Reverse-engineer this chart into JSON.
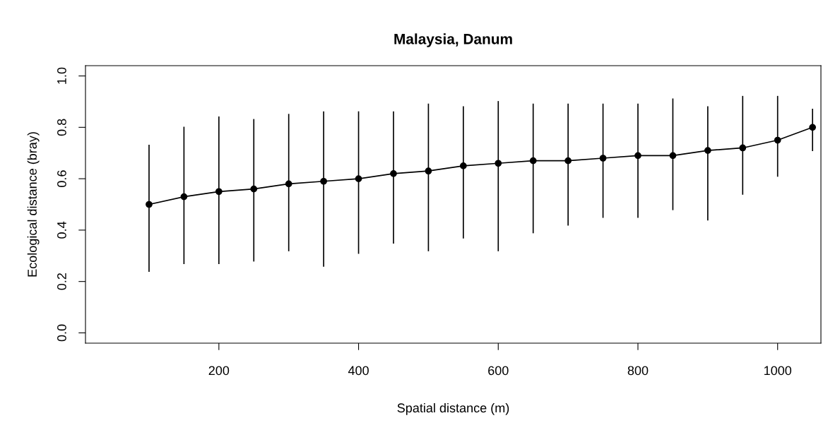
{
  "chart_data": {
    "type": "line",
    "title": "Malaysia, Danum",
    "xlabel": "Spatial distance (m)",
    "ylabel": "Ecological distance (bray)",
    "x": [
      100,
      150,
      200,
      250,
      300,
      350,
      400,
      450,
      500,
      550,
      600,
      650,
      700,
      750,
      800,
      850,
      900,
      950,
      1000,
      1050
    ],
    "series": [
      {
        "color": "#000000",
        "values": [
          0.5,
          0.53,
          0.55,
          0.56,
          0.58,
          0.59,
          0.6,
          0.62,
          0.63,
          0.65,
          0.66,
          0.67,
          0.67,
          0.68,
          0.69,
          0.69,
          0.71,
          0.72,
          0.75,
          0.8
        ],
        "errors": [
          [
            0.24,
            0.73
          ],
          [
            0.27,
            0.8
          ],
          [
            0.27,
            0.84
          ],
          [
            0.28,
            0.83
          ],
          [
            0.32,
            0.85
          ],
          [
            0.26,
            0.86
          ],
          [
            0.31,
            0.86
          ],
          [
            0.35,
            0.86
          ],
          [
            0.32,
            0.89
          ],
          [
            0.37,
            0.88
          ],
          [
            0.32,
            0.9
          ],
          [
            0.39,
            0.89
          ],
          [
            0.42,
            0.89
          ],
          [
            0.45,
            0.89
          ],
          [
            0.45,
            0.89
          ],
          [
            0.48,
            0.91
          ],
          [
            0.44,
            0.88
          ],
          [
            0.54,
            0.92
          ],
          [
            0.61,
            0.92
          ],
          [
            0.71,
            0.87
          ]
        ]
      }
    ],
    "xlim": [
      9,
      1062
    ],
    "ylim": [
      -0.04,
      1.04
    ],
    "xticks": [
      200,
      400,
      600,
      800,
      1000
    ],
    "yticks": [
      {
        "value": 0,
        "label": "0.0"
      },
      {
        "value": 0.2,
        "label": "0.2"
      },
      {
        "value": 0.4,
        "label": "0.4"
      },
      {
        "value": 0.6,
        "label": "0.6"
      },
      {
        "value": 0.8,
        "label": "0.8"
      },
      {
        "value": 1,
        "label": "1.0"
      }
    ],
    "marker": "circle",
    "line_style": "solid",
    "grid": false,
    "legend": false
  }
}
